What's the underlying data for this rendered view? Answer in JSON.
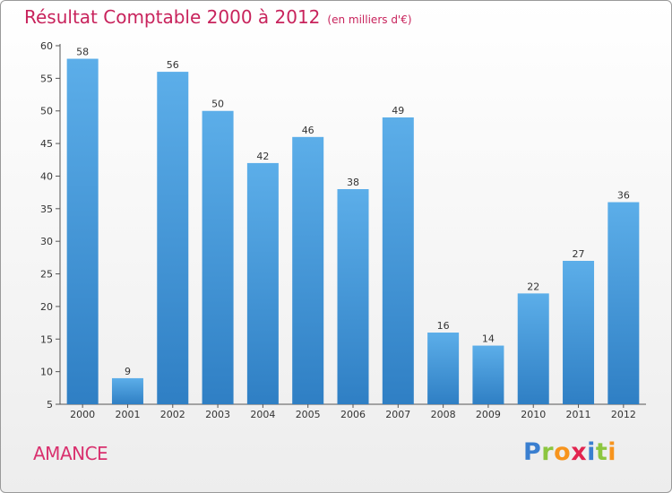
{
  "title": "Résultat Comptable 2000 à 2012",
  "subtitle": "(en milliers d'€)",
  "commune": "AMANCE",
  "logo": {
    "text": "Proxiti",
    "letters": [
      {
        "ch": "P",
        "color": "#3a7fd0"
      },
      {
        "ch": "r",
        "color": "#8cc63f"
      },
      {
        "ch": "o",
        "color": "#f7941d"
      },
      {
        "ch": "x",
        "color": "#e2244f"
      },
      {
        "ch": "i",
        "color": "#3a7fd0"
      },
      {
        "ch": "t",
        "color": "#8cc63f"
      },
      {
        "ch": "i",
        "color": "#f7941d"
      }
    ]
  },
  "chart_data": {
    "type": "bar",
    "categories": [
      "2000",
      "2001",
      "2002",
      "2003",
      "2004",
      "2005",
      "2006",
      "2007",
      "2008",
      "2009",
      "2010",
      "2011",
      "2012"
    ],
    "values": [
      58,
      9,
      56,
      50,
      42,
      46,
      38,
      49,
      16,
      14,
      22,
      27,
      36
    ],
    "ylim": [
      5,
      60
    ],
    "yticks": [
      5,
      10,
      15,
      20,
      25,
      30,
      35,
      40,
      45,
      50,
      55,
      60
    ],
    "grid": false,
    "legend": "none",
    "bar_color_top": "#5caee9",
    "bar_color_bottom": "#2f7fc4"
  }
}
